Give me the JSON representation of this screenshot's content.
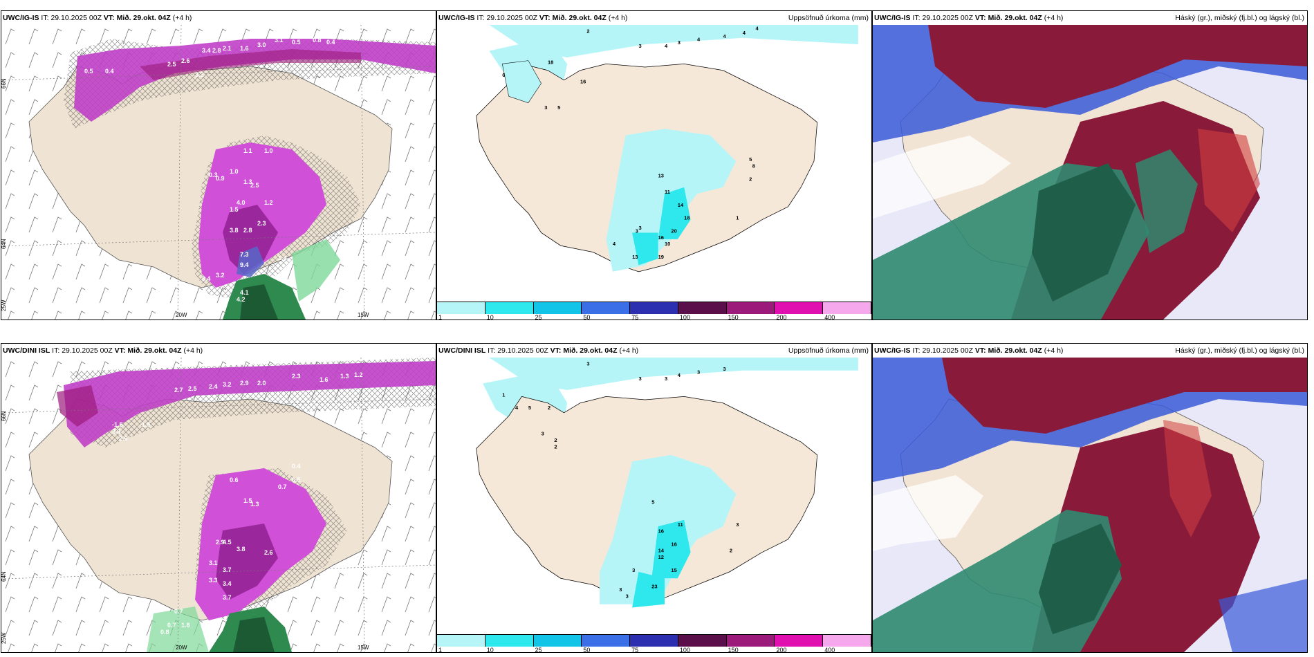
{
  "panels": {
    "p1": {
      "model": "UWC/IG-IS",
      "it_label": "IT:",
      "it": "29.10.2025 00Z",
      "vt_label": "VT:",
      "vt": "Mið. 29.okt. 04Z",
      "lead": "(+4 h)",
      "title": ""
    },
    "p2": {
      "model": "UWC/IG-IS",
      "it_label": "IT:",
      "it": "29.10.2025 00Z",
      "vt_label": "VT:",
      "vt": "Mið. 29.okt. 04Z",
      "lead": "(+4 h)",
      "title": "Uppsöfnuð úrkoma (mm)"
    },
    "p3": {
      "model": "UWC/IG-IS",
      "it_label": "IT:",
      "it": "29.10.2025 00Z",
      "vt_label": "VT:",
      "vt": "Mið. 29.okt. 04Z",
      "lead": "(+4 h)",
      "title": "Háský (gr.), miðský (fj.bl.) og lágský (bl.)"
    },
    "p4": {
      "model": "UWC/DINI ISL",
      "it_label": "IT:",
      "it": "29.10.2025 00Z",
      "vt_label": "VT:",
      "vt": "Mið. 29.okt. 04Z",
      "lead": "(+4 h)",
      "title": ""
    },
    "p5": {
      "model": "UWC/DINI ISL",
      "it_label": "IT:",
      "it": "29.10.2025 00Z",
      "vt_label": "VT:",
      "vt": "Mið. 29.okt. 04Z",
      "lead": "(+4 h)",
      "title": "Uppsöfnuð úrkoma (mm)"
    },
    "p6": {
      "model": "UWC/IG-IS",
      "it_label": "IT:",
      "it": "29.10.2025 00Z",
      "vt_label": "VT:",
      "vt": "Mið. 29.okt. 04Z",
      "lead": "(+4 h)",
      "title": "Háský (gr.), miðský (fj.bl.) og lágský (bl.)"
    }
  },
  "axis_labels": {
    "lat66": "66N",
    "lat64": "64N",
    "lon25": "25W",
    "lon20": "20W",
    "lon15": "15W"
  },
  "legend": {
    "labels": [
      "1",
      "10",
      "25",
      "50",
      "75",
      "100",
      "150",
      "200",
      "400"
    ],
    "colors": [
      "#b5f5f8",
      "#2ee8ee",
      "#12c4e8",
      "#3b6fe8",
      "#2b2fb0",
      "#5a0f4a",
      "#9b1a7a",
      "#e010b0",
      "#f5a8ec"
    ]
  },
  "precip_labels_top": [
    "2",
    "3",
    "4",
    "3",
    "4",
    "4",
    "4",
    "4",
    "18",
    "16",
    "3",
    "5",
    "13",
    "11",
    "14",
    "18",
    "20",
    "16",
    "10",
    "19",
    "13",
    "3",
    "4",
    "1",
    "5",
    "8",
    "2",
    "3",
    "6"
  ],
  "precip_labels_bottom": [
    "3",
    "3",
    "3",
    "4",
    "3",
    "3",
    "1",
    "4",
    "5",
    "2",
    "3",
    "2",
    "2",
    "5",
    "16",
    "14",
    "12",
    "15",
    "16",
    "11",
    "3",
    "23",
    "3",
    "3",
    "2",
    "3"
  ],
  "rate_labels_top": [
    "3.4",
    "2.8",
    "2.1",
    "1.6",
    "3.0",
    "3.1",
    "0.5",
    "0.8",
    "0.4",
    "2.5",
    "2.6",
    "3.2",
    "0.5",
    "0.4",
    "1.1",
    "1.0",
    "1.3",
    "2.5",
    "1.2",
    "4.0",
    "1.5",
    "2.3",
    "3.8",
    "2.8",
    "7.3",
    "9.4",
    "1.4",
    "3.4",
    "3.2",
    "4.1",
    "4.2",
    "0.3",
    "0.9",
    "1.0"
  ],
  "rate_labels_bottom": [
    "2.3",
    "1.6",
    "1.3",
    "1.2",
    "2.7",
    "2.5",
    "2.4",
    "3.2",
    "2.9",
    "2.0",
    "-1.5",
    "-1.5",
    "3.3",
    "2.6",
    "0.4",
    "0.5",
    "0.7",
    "0.6",
    "1.5",
    "1.3",
    "4.5",
    "2.9",
    "3.8",
    "2.6",
    "3.1",
    "3.7",
    "3.3",
    "3.4",
    "3.7",
    "0.7",
    "0.7",
    "1.8",
    "0.8"
  ]
}
